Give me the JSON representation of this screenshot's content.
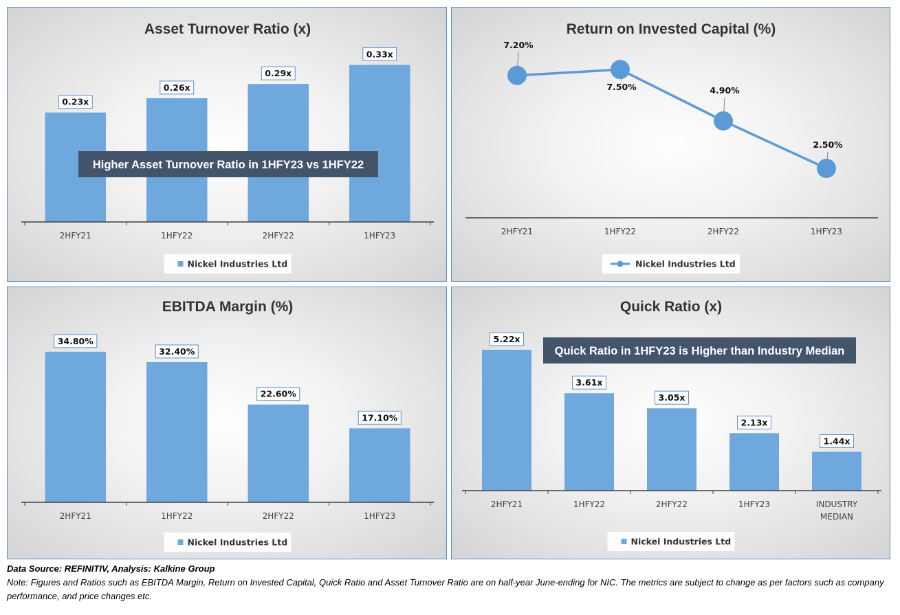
{
  "colors": {
    "bar": "#6fa8dc",
    "line": "#5b9bd5",
    "annotation_bg": "#44546a",
    "panel_border": "#5b8fc7"
  },
  "chart_data": [
    {
      "type": "bar",
      "title": "Asset Turnover Ratio (x)",
      "categories": [
        "2HFY21",
        "1HFY22",
        "2HFY22",
        "1HFY23"
      ],
      "series": [
        {
          "name": "Nickel Industries Ltd",
          "values": [
            0.23,
            0.26,
            0.29,
            0.33
          ]
        }
      ],
      "data_labels": [
        "0.23x",
        "0.26x",
        "0.29x",
        "0.33x"
      ],
      "annotation": "Higher Asset Turnover Ratio in 1HFY23 vs 1HFY22",
      "ylim": [
        0,
        0.335
      ],
      "grid": false,
      "legend": "bottom"
    },
    {
      "type": "line",
      "title": "Return on Invested Capital (%)",
      "categories": [
        "2HFY21",
        "1HFY22",
        "2HFY22",
        "1HFY23"
      ],
      "series": [
        {
          "name": "Nickel Industries Ltd",
          "values": [
            7.2,
            7.5,
            4.9,
            2.5
          ]
        }
      ],
      "data_labels": [
        "7.20%",
        "7.50%",
        "4.90%",
        "2.50%"
      ],
      "ylim": [
        0,
        8.2
      ],
      "grid": false,
      "legend": "bottom"
    },
    {
      "type": "bar",
      "title": "EBITDA Margin (%)",
      "categories": [
        "2HFY21",
        "1HFY22",
        "2HFY22",
        "1HFY23"
      ],
      "series": [
        {
          "name": "Nickel Industries Ltd",
          "values": [
            34.8,
            32.4,
            22.6,
            17.1
          ]
        }
      ],
      "data_labels": [
        "34.80%",
        "32.40%",
        "22.60%",
        "17.10%"
      ],
      "ylim": [
        0,
        37
      ],
      "grid": false,
      "legend": "bottom"
    },
    {
      "type": "bar",
      "title": "Quick Ratio (x)",
      "categories": [
        "2HFY21",
        "1HFY22",
        "2HFY22",
        "1HFY23",
        "INDUSTRY MEDIAN"
      ],
      "series": [
        {
          "name": "Nickel Industries Ltd",
          "values": [
            5.22,
            3.61,
            3.05,
            2.13,
            1.44
          ]
        }
      ],
      "data_labels": [
        "5.22x",
        "3.61x",
        "3.05x",
        "2.13x",
        "1.44x"
      ],
      "annotation": "Quick Ratio in 1HFY23 is Higher than Industry Median",
      "ylim": [
        0,
        5.5
      ],
      "grid": false,
      "legend": "bottom"
    }
  ],
  "footer": {
    "source": "Data Source: REFINITIV, Analysis: Kalkine Group",
    "note": "Note: Figures and Ratios such as EBITDA Margin, Return on Invested Capital, Quick Ratio and Asset Turnover Ratio are on half-year June-ending for NIC. The metrics are subject to change as per factors such as company performance, and price changes etc."
  }
}
